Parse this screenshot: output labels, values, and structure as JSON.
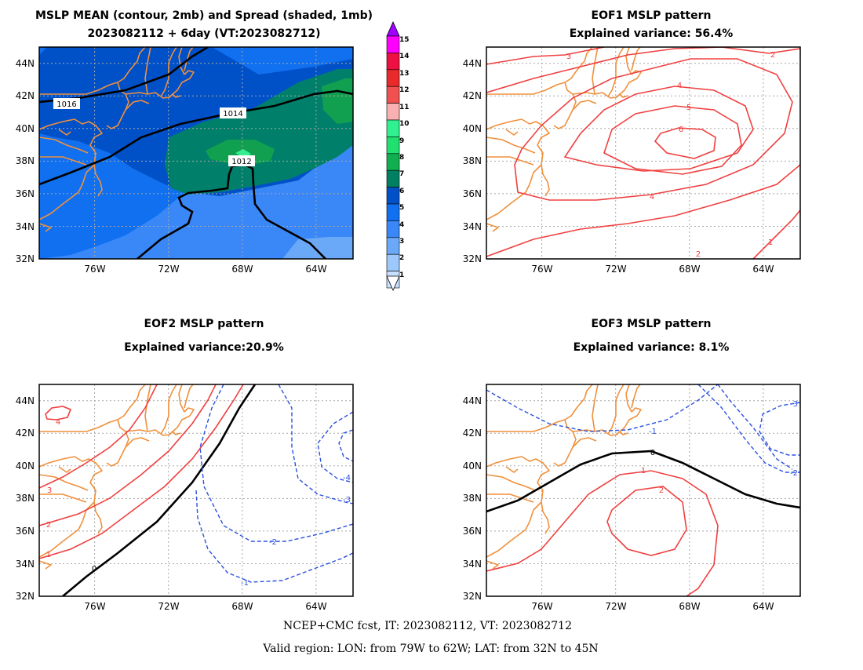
{
  "panels": {
    "mean": {
      "title1": "MSLP MEAN (contour, 2mb) and Spread (shaded, 1mb)",
      "title2": "2023082112 + 6day (VT:2023082712)",
      "contour_labels": [
        "1016",
        "1014",
        "1012"
      ]
    },
    "eof1": {
      "title1": "EOF1 MSLP pattern",
      "title2": "Explained variance: 56.4%",
      "contour_labels": [
        "3",
        "2",
        "4",
        "5",
        "6",
        "4",
        "2",
        "1"
      ]
    },
    "eof2": {
      "title1": "EOF2 MSLP pattern",
      "title2": "Explained variance:20.9%",
      "contour_labels": [
        "4",
        "3",
        "2",
        "1",
        "0",
        "-4",
        "-3",
        "-2",
        "-1"
      ]
    },
    "eof3": {
      "title1": "EOF3 MSLP pattern",
      "title2": "Explained variance: 8.1%",
      "contour_labels": [
        "-1",
        "-3",
        "-2",
        "0",
        "1",
        "2"
      ]
    }
  },
  "axes": {
    "lat_ticks": [
      "44N",
      "42N",
      "40N",
      "38N",
      "36N",
      "34N",
      "32N"
    ],
    "lon_ticks": [
      "76W",
      "72W",
      "68W",
      "64W"
    ]
  },
  "colorbar": {
    "labels": [
      "15",
      "14",
      "13",
      "12",
      "11",
      "10",
      "9",
      "8",
      "7",
      "6",
      "5",
      "4",
      "3",
      "2",
      "1"
    ],
    "colors": [
      "#ff00ff",
      "#ee1040",
      "#e82a2a",
      "#f05050",
      "#f8b0b0",
      "#30f090",
      "#20e070",
      "#10b050",
      "#008060",
      "#0050c8",
      "#1070f0",
      "#3a88f8",
      "#6aa8f8",
      "#9cc8fc",
      "#c8e0ff"
    ],
    "top_color": "#a000ff"
  },
  "colors": {
    "coast": "#f0903c",
    "positive": "#f04040",
    "negative": "#2a50e0",
    "zero": "#000000"
  },
  "footer": {
    "line1": "NCEP+CMC fcst, IT: 2023082112, VT: 2023082712",
    "line2": "Valid region: LON: from 79W to 62W; LAT: from 32N to 45N"
  }
}
